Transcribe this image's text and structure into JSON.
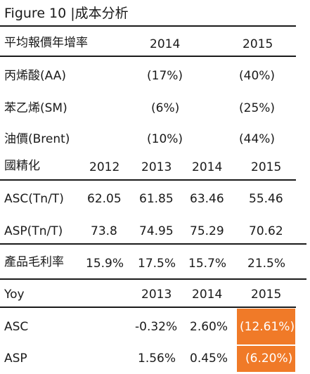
{
  "title": "Figure 10 |成本分析",
  "section1": {
    "header": {
      "label": "平均報價年增率",
      "cols": [
        "2014",
        "2015"
      ]
    },
    "rows": [
      {
        "label": "丙烯酸(AA)",
        "values": [
          "(17%)",
          "(40%)"
        ]
      },
      {
        "label": "苯乙烯(SM)",
        "values": [
          "(6%)",
          "(25%)"
        ]
      },
      {
        "label": "油價(Brent)",
        "values": [
          "(10%)",
          "(44%)"
        ]
      }
    ]
  },
  "section2": {
    "header": {
      "label": "國精化",
      "cols": [
        "2012",
        "2013",
        "2014",
        "2015"
      ]
    },
    "rows": [
      {
        "label": "ASC(Tn/T)",
        "values": [
          "62.05",
          "61.85",
          "63.46",
          "55.46"
        ]
      },
      {
        "label": "ASP(Tn/T)",
        "values": [
          "73.8",
          "74.95",
          "75.29",
          "70.62"
        ]
      }
    ],
    "margin_row": {
      "label": "產品毛利率",
      "values": [
        "15.9%",
        "17.5%",
        "15.7%",
        "21.5%"
      ]
    }
  },
  "section3": {
    "header": {
      "label": "Yoy",
      "cols": [
        "2013",
        "2014",
        "2015"
      ]
    },
    "rows": [
      {
        "label": "ASC",
        "values": [
          "-0.32%",
          "2.60%",
          "(12.61%)"
        ]
      },
      {
        "label": "ASP",
        "values": [
          "1.56%",
          "0.45%",
          "(6.20%)"
        ]
      }
    ]
  },
  "colors": {
    "highlight": "#f07a28",
    "rule": "#1a1a1a"
  }
}
